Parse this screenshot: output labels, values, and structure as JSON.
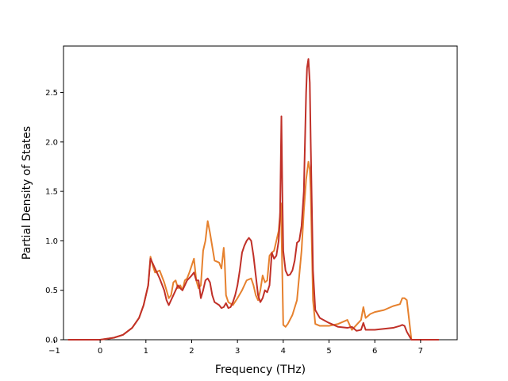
{
  "chart_data": {
    "type": "line",
    "xlabel": "Frequency (THz)",
    "ylabel": "Partial Density of States",
    "xlim": [
      -0.8,
      7.8
    ],
    "ylim": [
      0.0,
      2.97
    ],
    "xticks": [
      -1,
      0,
      1,
      2,
      3,
      4,
      5,
      6,
      7
    ],
    "yticks": [
      0.0,
      0.5,
      1.0,
      1.5,
      2.0,
      2.5
    ],
    "xtick_labels": [
      "−1",
      "0",
      "1",
      "2",
      "3",
      "4",
      "5",
      "6",
      "7"
    ],
    "ytick_labels": [
      "0.0",
      "0.5",
      "1.0",
      "1.5",
      "2.0",
      "2.5"
    ],
    "grid": false,
    "series": [
      {
        "color": "#e6812e",
        "x": [
          -0.7,
          0.0,
          0.3,
          0.5,
          0.7,
          0.85,
          0.95,
          1.05,
          1.1,
          1.15,
          1.2,
          1.3,
          1.4,
          1.5,
          1.55,
          1.6,
          1.65,
          1.7,
          1.75,
          1.8,
          1.85,
          1.9,
          1.95,
          2.0,
          2.05,
          2.1,
          2.15,
          2.2,
          2.25,
          2.3,
          2.35,
          2.4,
          2.5,
          2.6,
          2.65,
          2.7,
          2.72,
          2.75,
          2.8,
          2.9,
          3.0,
          3.1,
          3.2,
          3.3,
          3.35,
          3.4,
          3.45,
          3.5,
          3.55,
          3.6,
          3.65,
          3.7,
          3.75,
          3.8,
          3.85,
          3.9,
          3.95,
          3.97,
          4.0,
          4.05,
          4.1,
          4.2,
          4.3,
          4.4,
          4.45,
          4.5,
          4.55,
          4.58,
          4.6,
          4.65,
          4.7,
          4.8,
          5.0,
          5.2,
          5.4,
          5.5,
          5.6,
          5.7,
          5.75,
          5.8,
          5.9,
          6.0,
          6.2,
          6.4,
          6.55,
          6.6,
          6.65,
          6.7,
          6.8,
          7.0,
          7.4
        ],
        "y": [
          0.0,
          0.0,
          0.02,
          0.05,
          0.12,
          0.22,
          0.35,
          0.55,
          0.84,
          0.75,
          0.68,
          0.7,
          0.58,
          0.42,
          0.45,
          0.58,
          0.6,
          0.52,
          0.55,
          0.5,
          0.6,
          0.62,
          0.68,
          0.75,
          0.82,
          0.6,
          0.52,
          0.55,
          0.9,
          1.0,
          1.2,
          1.08,
          0.8,
          0.78,
          0.72,
          0.93,
          0.8,
          0.45,
          0.38,
          0.35,
          0.42,
          0.5,
          0.6,
          0.62,
          0.55,
          0.45,
          0.4,
          0.5,
          0.65,
          0.58,
          0.6,
          0.85,
          0.88,
          0.9,
          1.0,
          1.1,
          1.38,
          0.9,
          0.15,
          0.13,
          0.16,
          0.25,
          0.4,
          0.9,
          1.3,
          1.62,
          1.8,
          1.72,
          1.5,
          0.4,
          0.16,
          0.14,
          0.14,
          0.16,
          0.2,
          0.1,
          0.15,
          0.2,
          0.33,
          0.22,
          0.26,
          0.28,
          0.3,
          0.34,
          0.36,
          0.42,
          0.42,
          0.4,
          0.0,
          0.0,
          0.0
        ]
      },
      {
        "color": "#c03028",
        "x": [
          -0.7,
          0.0,
          0.3,
          0.5,
          0.7,
          0.85,
          0.95,
          1.05,
          1.1,
          1.2,
          1.3,
          1.4,
          1.45,
          1.5,
          1.6,
          1.7,
          1.75,
          1.8,
          1.9,
          2.0,
          2.05,
          2.1,
          2.15,
          2.2,
          2.25,
          2.3,
          2.35,
          2.4,
          2.45,
          2.5,
          2.6,
          2.65,
          2.7,
          2.75,
          2.8,
          2.85,
          2.9,
          2.95,
          3.0,
          3.05,
          3.1,
          3.15,
          3.2,
          3.25,
          3.3,
          3.35,
          3.4,
          3.45,
          3.5,
          3.55,
          3.6,
          3.65,
          3.7,
          3.75,
          3.8,
          3.85,
          3.9,
          3.93,
          3.96,
          3.98,
          4.0,
          4.05,
          4.1,
          4.15,
          4.2,
          4.25,
          4.3,
          4.35,
          4.4,
          4.45,
          4.5,
          4.52,
          4.55,
          4.58,
          4.6,
          4.65,
          4.7,
          4.8,
          5.0,
          5.2,
          5.4,
          5.5,
          5.6,
          5.7,
          5.75,
          5.8,
          5.9,
          6.0,
          6.2,
          6.4,
          6.55,
          6.6,
          6.65,
          6.7,
          6.8,
          7.0,
          7.4
        ],
        "y": [
          0.0,
          0.0,
          0.02,
          0.05,
          0.12,
          0.22,
          0.35,
          0.55,
          0.82,
          0.72,
          0.62,
          0.5,
          0.4,
          0.35,
          0.45,
          0.55,
          0.52,
          0.5,
          0.6,
          0.65,
          0.68,
          0.6,
          0.6,
          0.42,
          0.5,
          0.6,
          0.62,
          0.58,
          0.45,
          0.38,
          0.35,
          0.32,
          0.33,
          0.37,
          0.32,
          0.33,
          0.38,
          0.45,
          0.55,
          0.7,
          0.88,
          0.95,
          1.0,
          1.03,
          1.0,
          0.85,
          0.65,
          0.45,
          0.38,
          0.42,
          0.5,
          0.48,
          0.55,
          0.88,
          0.82,
          0.85,
          1.0,
          1.25,
          2.26,
          1.5,
          0.9,
          0.7,
          0.65,
          0.66,
          0.7,
          0.8,
          0.98,
          1.0,
          1.15,
          1.5,
          2.5,
          2.75,
          2.84,
          2.6,
          2.0,
          0.7,
          0.3,
          0.22,
          0.17,
          0.13,
          0.12,
          0.13,
          0.09,
          0.1,
          0.17,
          0.1,
          0.1,
          0.1,
          0.11,
          0.12,
          0.14,
          0.15,
          0.14,
          0.08,
          0.0,
          0.0,
          0.0
        ]
      }
    ]
  }
}
